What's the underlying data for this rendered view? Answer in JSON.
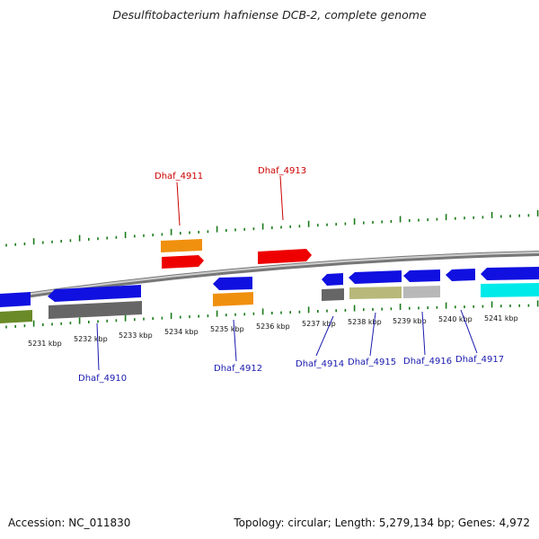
{
  "header": {
    "title": "Desulfitobacterium hafniense DCB-2, complete genome"
  },
  "footer": {
    "accession": "Accession: NC_011830",
    "summary": "Topology: circular; Length: 5,279,134 bp; Genes: 4,972"
  },
  "colors": {
    "backbone": "#888888",
    "ticks": "#1a7a1a",
    "top_label": "#cc0000",
    "bottom_label": "#1a1ab0"
  },
  "scale": {
    "unit": "kbp",
    "tick_labels": [
      "5231 kbp",
      "5232 kbp",
      "5233 kbp",
      "5234 kbp",
      "5235 kbp",
      "5236 kbp",
      "5237 kbp",
      "5238 kbp",
      "5239 kbp",
      "5240 kbp",
      "5241 kbp"
    ]
  },
  "genes": {
    "top_labels": [
      "Dhaf_4911",
      "Dhaf_4913"
    ],
    "bottom_labels": [
      "Dhaf_4910",
      "Dhaf_4912",
      "Dhaf_4914",
      "Dhaf_4915",
      "Dhaf_4916",
      "Dhaf_4917"
    ]
  }
}
